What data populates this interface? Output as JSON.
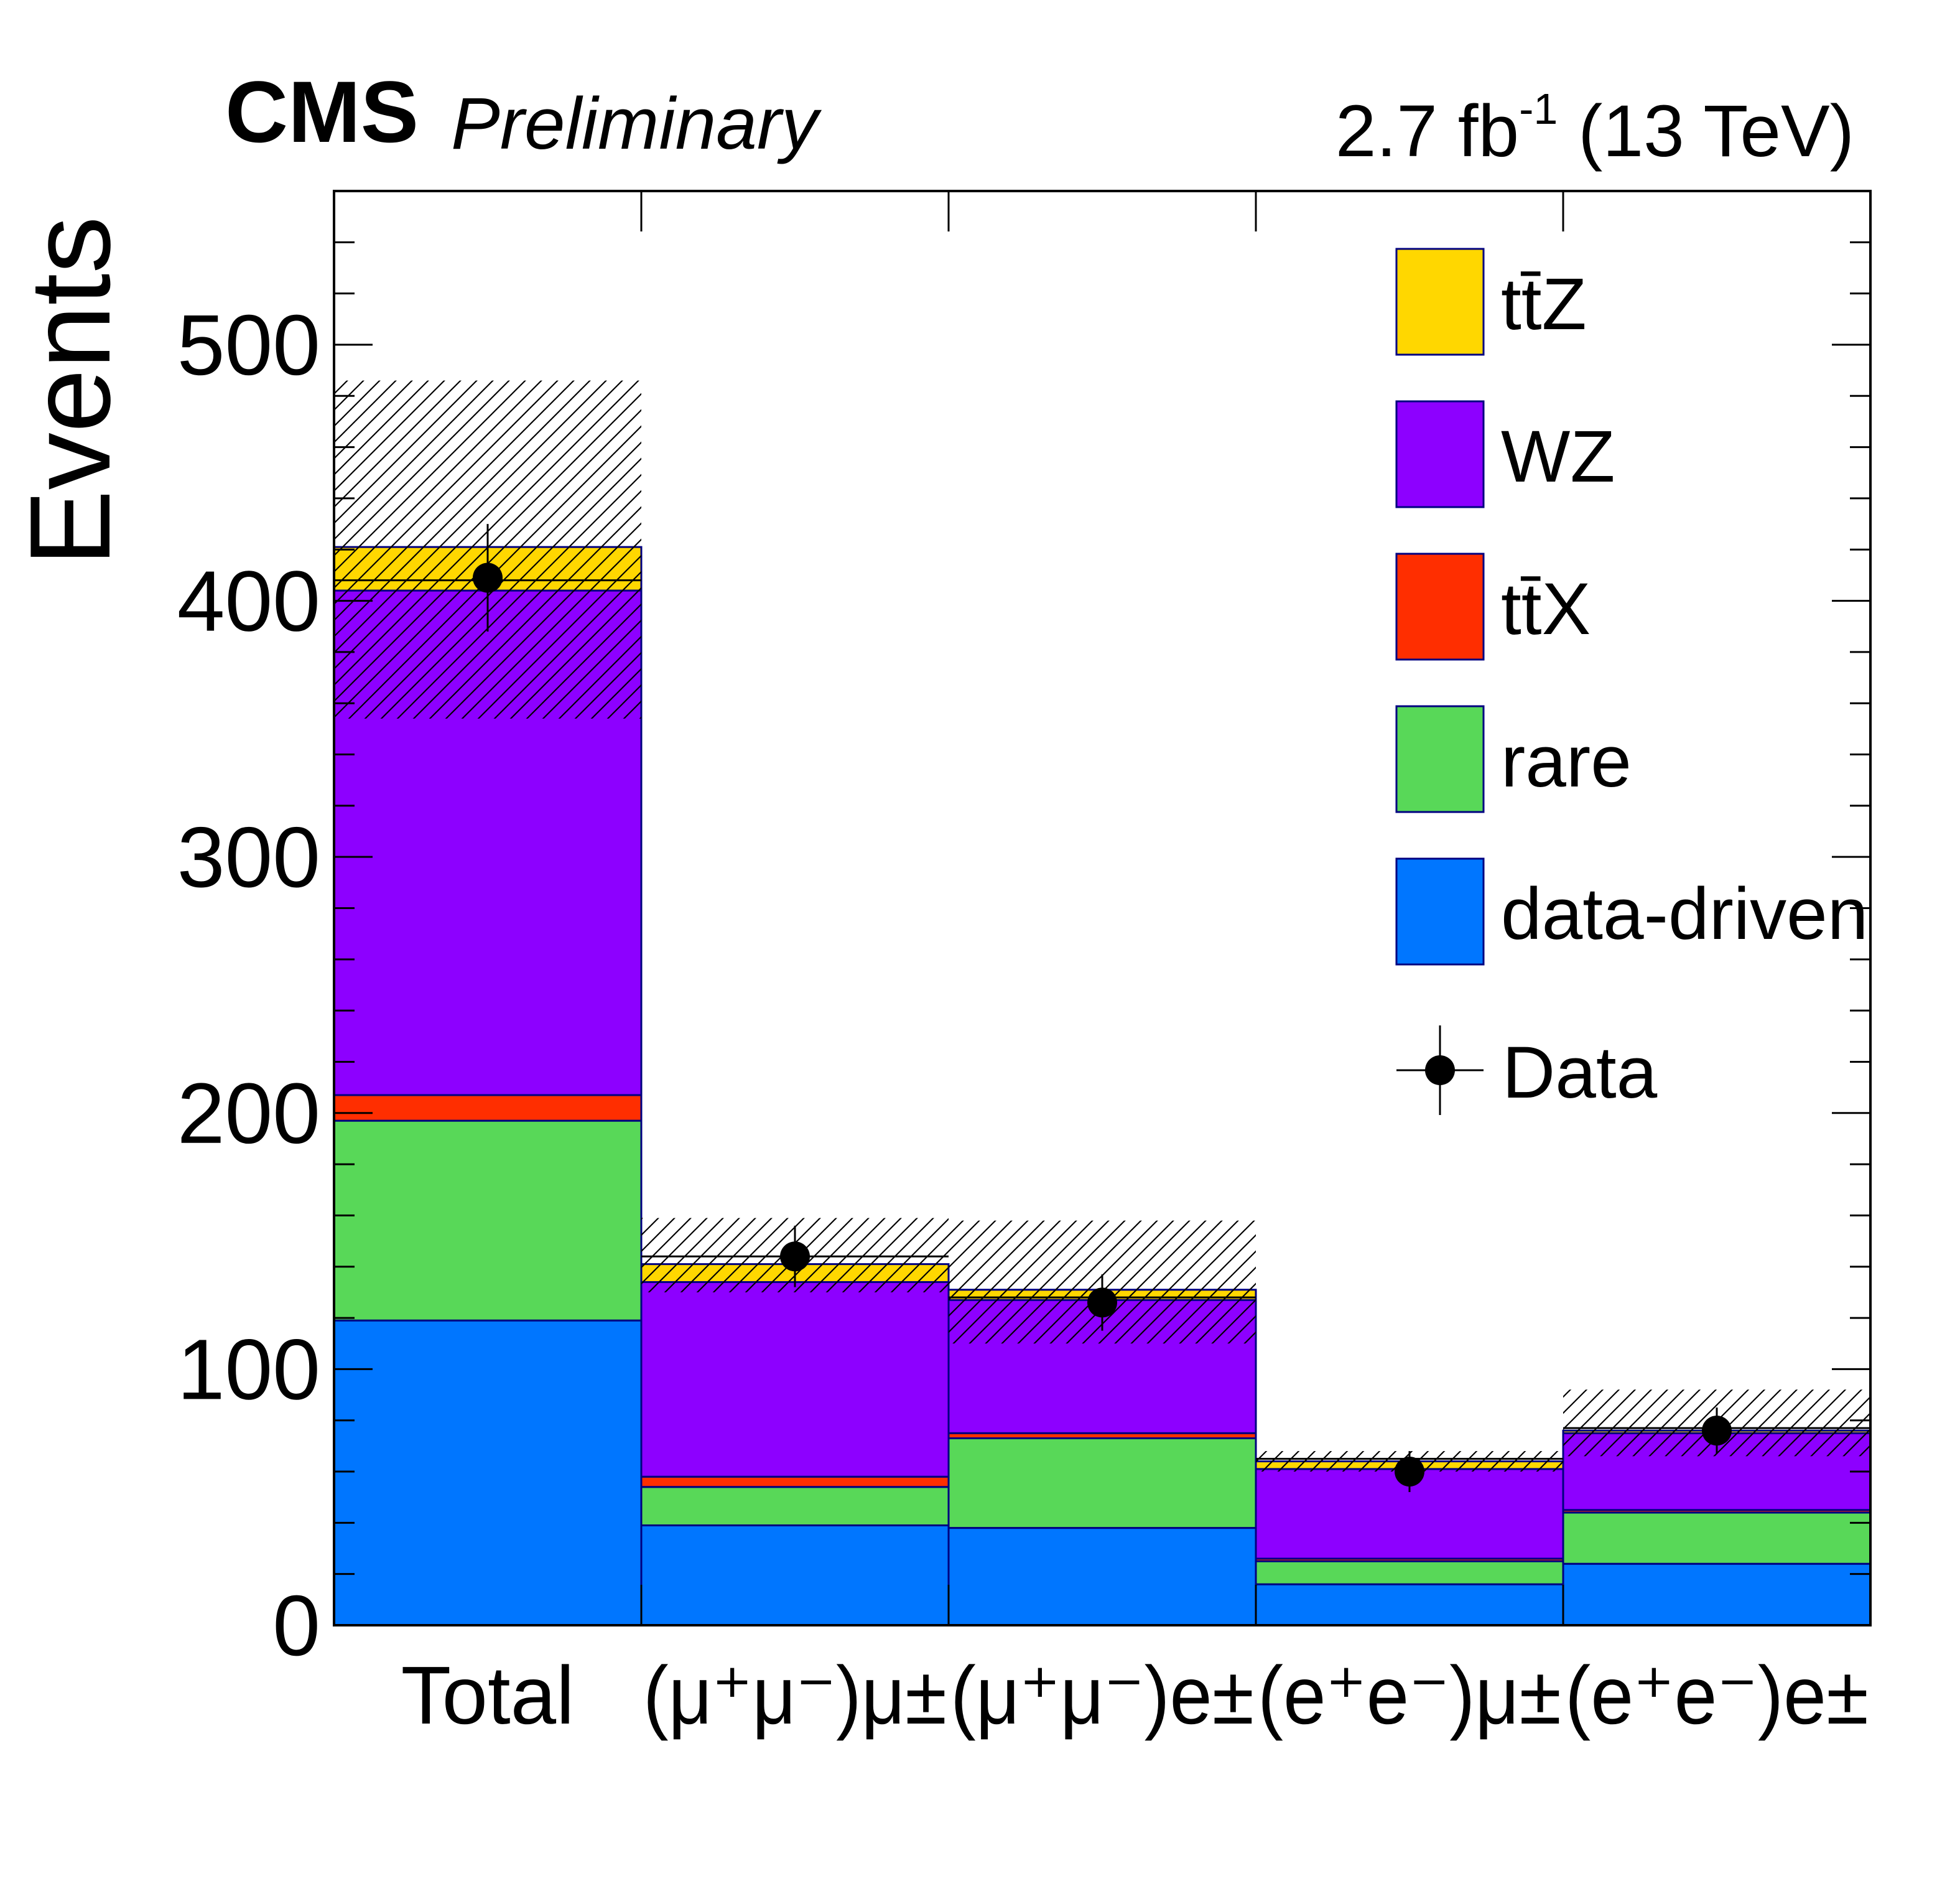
{
  "header": {
    "experiment": "CMS",
    "status": "Preliminary",
    "lumi_value": "2.7 fb",
    "lumi_exp": "-1",
    "energy": "(13 TeV)"
  },
  "chart_data": {
    "type": "bar",
    "stacked": true,
    "ylabel": "Events",
    "xlabel": "",
    "ylim": [
      0,
      560
    ],
    "yticks": [
      "0",
      "100",
      "200",
      "300",
      "400",
      "500"
    ],
    "categories": [
      {
        "label": "Total"
      },
      {
        "label": "(μ⁺μ⁻)μ±"
      },
      {
        "label": "(μ⁺μ⁻)e±"
      },
      {
        "label": "(e⁺e⁻)μ±"
      },
      {
        "label": "(e⁺e⁻)e±"
      }
    ],
    "series": [
      {
        "name": "data-driven",
        "color": "#0076ff",
        "values": [
          119,
          39,
          38,
          16,
          24
        ]
      },
      {
        "name": "rare",
        "color": "#58d858",
        "values": [
          78,
          15,
          35,
          9,
          20
        ]
      },
      {
        "name": "tt̄X",
        "color": "#ff2e00",
        "values": [
          10,
          4,
          2,
          1,
          1
        ]
      },
      {
        "name": "WZ",
        "color": "#8d00ff",
        "values": [
          197,
          76,
          52,
          35,
          30
        ]
      },
      {
        "name": "tt̄Z",
        "color": "#ffd700",
        "values": [
          17,
          7,
          4,
          3,
          1
        ]
      }
    ],
    "uncertainty_band": {
      "center": [
        408,
        144,
        128,
        65,
        77
      ],
      "down": [
        354,
        130,
        110,
        60,
        66
      ],
      "up": [
        486,
        159,
        158,
        68,
        92
      ]
    },
    "data": {
      "name": "Data",
      "values": [
        409,
        144,
        126,
        60,
        76
      ],
      "errors": [
        21,
        12,
        11,
        8,
        9
      ]
    },
    "legend": {
      "position": "top-right",
      "entries": [
        "tt̄Z",
        "WZ",
        "tt̄X",
        "rare",
        "data-driven",
        "Data"
      ]
    },
    "grid": false
  }
}
